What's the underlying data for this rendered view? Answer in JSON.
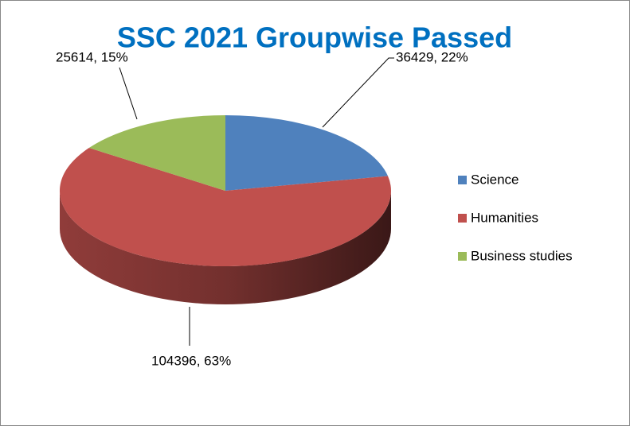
{
  "chart_data": {
    "type": "pie",
    "title": "SSC 2021 Groupwise Passed",
    "categories": [
      "Science",
      "Humanities",
      "Business studies"
    ],
    "values": [
      36429,
      104396,
      25614
    ],
    "value_labels": [
      "36429, 22%",
      "104396, 63%",
      "25614, 15%"
    ],
    "colors": [
      "#4f81bd",
      "#c0504d",
      "#9bbb59"
    ],
    "legend": "right"
  }
}
